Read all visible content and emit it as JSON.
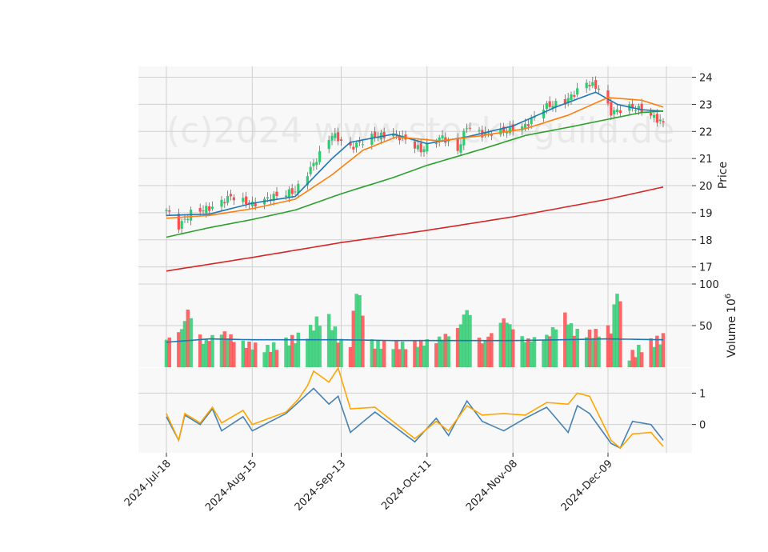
{
  "watermark": "(c)2024 www.stocks-guild.de",
  "chart_data": [
    {
      "type": "candlestick",
      "ylabel": "Price",
      "ylim": [
        16.4,
        24.4
      ],
      "yticks": [
        17,
        18,
        19,
        20,
        21,
        22,
        23,
        24
      ],
      "grid": true,
      "x": {
        "start": "2024-07-18",
        "end": "2024-12-27",
        "tick_labels": [
          "2024-Jul-18",
          "2024-Aug-15",
          "2024-Sep-13",
          "2024-Oct-11",
          "2024-Nov-08",
          "2024-Dec-09"
        ],
        "tick_dates": [
          "2024-07-18",
          "2024-08-15",
          "2024-09-13",
          "2024-10-11",
          "2024-11-08",
          "2024-12-09"
        ]
      },
      "close_keypoints": [
        [
          "2024-07-18",
          19.1
        ],
        [
          "2024-07-22",
          18.5
        ],
        [
          "2024-07-26",
          19.0
        ],
        [
          "2024-08-02",
          19.2
        ],
        [
          "2024-08-08",
          19.6
        ],
        [
          "2024-08-15",
          19.3
        ],
        [
          "2024-08-22",
          19.6
        ],
        [
          "2024-08-29",
          19.8
        ],
        [
          "2024-09-04",
          20.8
        ],
        [
          "2024-09-10",
          21.9
        ],
        [
          "2024-09-16",
          21.4
        ],
        [
          "2024-09-23",
          21.8
        ],
        [
          "2024-09-30",
          21.9
        ],
        [
          "2024-10-04",
          21.7
        ],
        [
          "2024-10-09",
          21.3
        ],
        [
          "2024-10-16",
          21.8
        ],
        [
          "2024-10-21",
          21.3
        ],
        [
          "2024-10-24",
          22.2
        ],
        [
          "2024-10-29",
          21.9
        ],
        [
          "2024-11-04",
          22.0
        ],
        [
          "2024-11-12",
          22.2
        ],
        [
          "2024-11-18",
          22.9
        ],
        [
          "2024-11-25",
          23.1
        ],
        [
          "2024-12-02",
          23.8
        ],
        [
          "2024-12-06",
          23.6
        ],
        [
          "2024-12-10",
          22.7
        ],
        [
          "2024-12-16",
          22.9
        ],
        [
          "2024-12-20",
          22.8
        ],
        [
          "2024-12-27",
          22.3
        ]
      ],
      "moving_averages": [
        {
          "color": "#1f77b4",
          "keypoints": [
            [
              "2024-07-18",
              18.9
            ],
            [
              "2024-08-01",
              18.95
            ],
            [
              "2024-08-15",
              19.35
            ],
            [
              "2024-08-29",
              19.6
            ],
            [
              "2024-09-10",
              21.0
            ],
            [
              "2024-09-16",
              21.6
            ],
            [
              "2024-09-30",
              21.9
            ],
            [
              "2024-10-11",
              21.55
            ],
            [
              "2024-10-24",
              21.8
            ],
            [
              "2024-11-08",
              22.2
            ],
            [
              "2024-11-22",
              22.9
            ],
            [
              "2024-12-05",
              23.45
            ],
            [
              "2024-12-12",
              23.0
            ],
            [
              "2024-12-20",
              22.8
            ],
            [
              "2024-12-27",
              22.75
            ]
          ]
        },
        {
          "color": "#ff7f0e",
          "keypoints": [
            [
              "2024-07-18",
              18.8
            ],
            [
              "2024-08-01",
              18.9
            ],
            [
              "2024-08-15",
              19.15
            ],
            [
              "2024-08-29",
              19.5
            ],
            [
              "2024-09-10",
              20.4
            ],
            [
              "2024-09-20",
              21.3
            ],
            [
              "2024-10-01",
              21.8
            ],
            [
              "2024-10-15",
              21.65
            ],
            [
              "2024-10-29",
              21.85
            ],
            [
              "2024-11-12",
              22.1
            ],
            [
              "2024-11-26",
              22.6
            ],
            [
              "2024-12-09",
              23.25
            ],
            [
              "2024-12-20",
              23.15
            ],
            [
              "2024-12-27",
              22.9
            ]
          ]
        },
        {
          "color": "#2ca02c",
          "keypoints": [
            [
              "2024-07-18",
              18.1
            ],
            [
              "2024-08-01",
              18.45
            ],
            [
              "2024-08-15",
              18.75
            ],
            [
              "2024-08-29",
              19.1
            ],
            [
              "2024-09-13",
              19.7
            ],
            [
              "2024-09-30",
              20.3
            ],
            [
              "2024-10-11",
              20.75
            ],
            [
              "2024-10-29",
              21.35
            ],
            [
              "2024-11-12",
              21.85
            ],
            [
              "2024-11-26",
              22.15
            ],
            [
              "2024-12-09",
              22.45
            ],
            [
              "2024-12-20",
              22.7
            ],
            [
              "2024-12-27",
              22.75
            ]
          ]
        },
        {
          "color": "#d62728",
          "keypoints": [
            [
              "2024-07-18",
              16.85
            ],
            [
              "2024-08-15",
              17.35
            ],
            [
              "2024-09-13",
              17.9
            ],
            [
              "2024-10-11",
              18.35
            ],
            [
              "2024-11-08",
              18.85
            ],
            [
              "2024-12-09",
              19.5
            ],
            [
              "2024-12-27",
              19.95
            ]
          ]
        }
      ]
    },
    {
      "type": "bar",
      "ylabel": "Volume",
      "ylabel_exponent": "6",
      "ylim": [
        0,
        100
      ],
      "yticks": [
        50,
        100
      ],
      "up_color": "#2ecc71",
      "down_color": "#ff4d4d",
      "volume_keypoints": [
        [
          "2024-07-18",
          33
        ],
        [
          "2024-07-23",
          45
        ],
        [
          "2024-07-25",
          68
        ],
        [
          "2024-07-30",
          30
        ],
        [
          "2024-08-05",
          42
        ],
        [
          "2024-08-12",
          28
        ],
        [
          "2024-08-20",
          22
        ],
        [
          "2024-09-02",
          40
        ],
        [
          "2024-09-05",
          55
        ],
        [
          "2024-09-09",
          58
        ],
        [
          "2024-09-13",
          28
        ],
        [
          "2024-09-16",
          30
        ],
        [
          "2024-09-18",
          94
        ],
        [
          "2024-09-23",
          28
        ],
        [
          "2024-10-04",
          26
        ],
        [
          "2024-10-14",
          32
        ],
        [
          "2024-10-21",
          45
        ],
        [
          "2024-10-24",
          70
        ],
        [
          "2024-10-29",
          28
        ],
        [
          "2024-11-05",
          58
        ],
        [
          "2024-11-12",
          32
        ],
        [
          "2024-11-19",
          36
        ],
        [
          "2024-11-25",
          62
        ],
        [
          "2024-11-28",
          42
        ],
        [
          "2024-12-04",
          40
        ],
        [
          "2024-12-10",
          46
        ],
        [
          "2024-12-12",
          94
        ],
        [
          "2024-12-16",
          12
        ],
        [
          "2024-12-20",
          24
        ],
        [
          "2024-12-27",
          35
        ]
      ],
      "volume_ma_keypoints": [
        [
          "2024-07-18",
          30
        ],
        [
          "2024-08-01",
          34
        ],
        [
          "2024-08-15",
          33
        ],
        [
          "2024-09-13",
          33
        ],
        [
          "2024-10-01",
          32
        ],
        [
          "2024-11-08",
          32
        ],
        [
          "2024-12-09",
          34
        ],
        [
          "2024-12-27",
          33
        ]
      ],
      "ma_color": "#1f77b4"
    },
    {
      "type": "line",
      "yticks": [
        0,
        1
      ],
      "ylim": [
        -0.9,
        1.8
      ],
      "series": [
        {
          "color": "#4682b4",
          "keypoints": [
            [
              "2024-07-18",
              0.25
            ],
            [
              "2024-07-22",
              -0.5
            ],
            [
              "2024-07-24",
              0.3
            ],
            [
              "2024-07-29",
              0.0
            ],
            [
              "2024-08-02",
              0.5
            ],
            [
              "2024-08-05",
              -0.2
            ],
            [
              "2024-08-12",
              0.25
            ],
            [
              "2024-08-15",
              -0.2
            ],
            [
              "2024-08-26",
              0.35
            ],
            [
              "2024-09-04",
              1.15
            ],
            [
              "2024-09-09",
              0.65
            ],
            [
              "2024-09-12",
              0.9
            ],
            [
              "2024-09-16",
              -0.25
            ],
            [
              "2024-09-24",
              0.4
            ],
            [
              "2024-10-07",
              -0.55
            ],
            [
              "2024-10-14",
              0.2
            ],
            [
              "2024-10-18",
              -0.35
            ],
            [
              "2024-10-24",
              0.75
            ],
            [
              "2024-10-29",
              0.1
            ],
            [
              "2024-11-05",
              -0.2
            ],
            [
              "2024-11-12",
              0.2
            ],
            [
              "2024-11-19",
              0.55
            ],
            [
              "2024-11-26",
              -0.25
            ],
            [
              "2024-11-29",
              0.6
            ],
            [
              "2024-12-03",
              0.35
            ],
            [
              "2024-12-10",
              -0.6
            ],
            [
              "2024-12-13",
              -0.75
            ],
            [
              "2024-12-17",
              0.1
            ],
            [
              "2024-12-23",
              0.0
            ],
            [
              "2024-12-27",
              -0.5
            ]
          ]
        },
        {
          "color": "#ffa500",
          "keypoints": [
            [
              "2024-07-18",
              0.35
            ],
            [
              "2024-07-22",
              -0.5
            ],
            [
              "2024-07-24",
              0.35
            ],
            [
              "2024-07-29",
              0.05
            ],
            [
              "2024-08-02",
              0.55
            ],
            [
              "2024-08-05",
              0.05
            ],
            [
              "2024-08-12",
              0.45
            ],
            [
              "2024-08-15",
              0.0
            ],
            [
              "2024-08-26",
              0.4
            ],
            [
              "2024-09-01",
              1.0
            ],
            [
              "2024-09-04",
              1.7
            ],
            [
              "2024-09-09",
              1.35
            ],
            [
              "2024-09-12",
              1.8
            ],
            [
              "2024-09-16",
              0.5
            ],
            [
              "2024-09-24",
              0.55
            ],
            [
              "2024-10-07",
              -0.45
            ],
            [
              "2024-10-14",
              0.1
            ],
            [
              "2024-10-18",
              -0.2
            ],
            [
              "2024-10-24",
              0.6
            ],
            [
              "2024-10-29",
              0.3
            ],
            [
              "2024-11-05",
              0.35
            ],
            [
              "2024-11-12",
              0.3
            ],
            [
              "2024-11-19",
              0.7
            ],
            [
              "2024-11-26",
              0.65
            ],
            [
              "2024-11-29",
              1.0
            ],
            [
              "2024-12-03",
              0.9
            ],
            [
              "2024-12-10",
              -0.5
            ],
            [
              "2024-12-13",
              -0.75
            ],
            [
              "2024-12-17",
              -0.3
            ],
            [
              "2024-12-23",
              -0.25
            ],
            [
              "2024-12-27",
              -0.7
            ]
          ]
        }
      ]
    }
  ]
}
